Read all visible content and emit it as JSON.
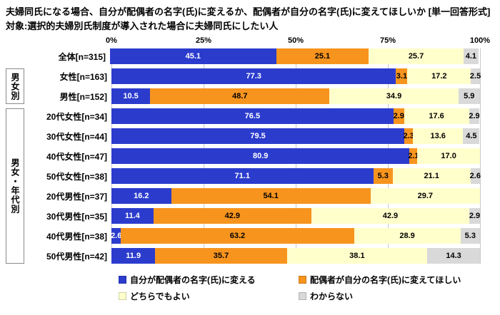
{
  "title": "夫婦同氏になる場合、自分が配偶者の名字(氏)に変えるか、配偶者が自分の名字(氏)に変えてほしいか [単一回答形式]\n対象:選択的夫婦別氏制度が導入された場合に夫婦同氏にしたい人",
  "axis": {
    "ticks": [
      "0%",
      "25%",
      "50%",
      "75%",
      "100%"
    ],
    "positions": [
      0,
      25,
      50,
      75,
      100
    ]
  },
  "colors": {
    "series": [
      "#2b3ccd",
      "#f7941e",
      "#ffffcc",
      "#d9d9d9"
    ],
    "series_label_colors": [
      "#ffffff",
      "#000000",
      "#000000",
      "#000000"
    ],
    "gridline": "#c9c9c9"
  },
  "legend": [
    {
      "label": "自分が配偶者の名字(氏)に変える"
    },
    {
      "label": "配偶者が自分の名字(氏)に変えてほしい"
    },
    {
      "label": "どちらでもよい"
    },
    {
      "label": "わからない"
    }
  ],
  "chart_data": {
    "type": "bar",
    "stacked": true,
    "orientation": "horizontal",
    "xlim": [
      0,
      100
    ],
    "series_names": [
      "自分が配偶者の名字(氏)に変える",
      "配偶者が自分の名字(氏)に変えてほしい",
      "どちらでもよい",
      "わからない"
    ],
    "groups": [
      {
        "label": "",
        "rows": [
          {
            "label": "全体[n=315]",
            "values": [
              45.1,
              25.1,
              25.7,
              4.1
            ]
          }
        ]
      },
      {
        "label": "男女別",
        "rows": [
          {
            "label": "女性[n=163]",
            "values": [
              77.3,
              3.1,
              17.2,
              2.5
            ]
          },
          {
            "label": "男性[n=152]",
            "values": [
              10.5,
              48.7,
              34.9,
              5.9
            ]
          }
        ]
      },
      {
        "label": "男女・年代別",
        "rows": [
          {
            "label": "20代女性[n=34]",
            "values": [
              76.5,
              2.9,
              17.6,
              2.9
            ]
          },
          {
            "label": "30代女性[n=44]",
            "values": [
              79.5,
              2.3,
              13.6,
              4.5
            ]
          },
          {
            "label": "40代女性[n=47]",
            "values": [
              80.9,
              2.1,
              17.0,
              0
            ]
          },
          {
            "label": "50代女性[n=38]",
            "values": [
              71.1,
              5.3,
              21.1,
              2.6
            ]
          },
          {
            "label": "20代男性[n=37]",
            "values": [
              16.2,
              54.1,
              29.7,
              0
            ]
          },
          {
            "label": "30代男性[n=35]",
            "values": [
              11.4,
              42.9,
              42.9,
              2.9
            ]
          },
          {
            "label": "40代男性[n=38]",
            "values": [
              2.6,
              63.2,
              28.9,
              5.3
            ]
          },
          {
            "label": "50代男性[n=42]",
            "values": [
              11.9,
              35.7,
              38.1,
              14.3
            ]
          }
        ]
      }
    ]
  }
}
